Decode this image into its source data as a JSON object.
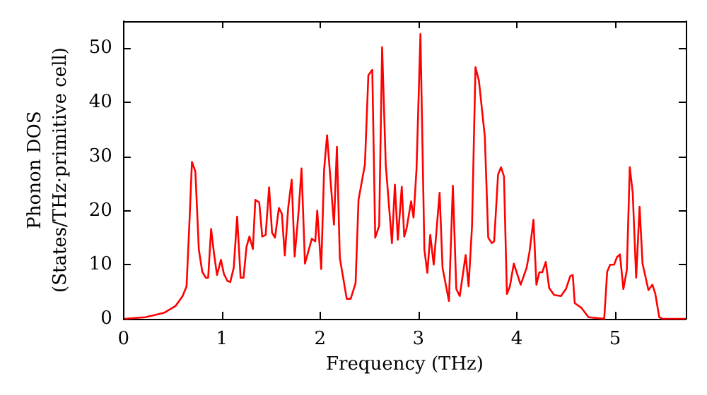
{
  "chart_data": {
    "type": "line",
    "xlabel": "Frequency (THz)",
    "ylabel": "Phonon DOS\n(States/THz·primitive cell)",
    "xlim": [
      0,
      5.72
    ],
    "xticks": [
      0,
      1,
      2,
      3,
      4,
      5
    ],
    "ylim": [
      0,
      55
    ],
    "yticks": [
      0,
      10,
      20,
      30,
      40,
      50
    ],
    "grid": false,
    "marker": "none",
    "line_style": "solid",
    "series": [
      {
        "color": "#ff0000",
        "x": [
          0.01,
          0.22,
          0.41,
          0.53,
          0.6,
          0.64,
          0.67,
          0.695,
          0.73,
          0.765,
          0.8,
          0.835,
          0.86,
          0.89,
          0.92,
          0.95,
          0.99,
          1.02,
          1.056,
          1.085,
          1.12,
          1.155,
          1.19,
          1.22,
          1.25,
          1.28,
          1.315,
          1.34,
          1.38,
          1.41,
          1.445,
          1.48,
          1.51,
          1.54,
          1.58,
          1.61,
          1.64,
          1.675,
          1.71,
          1.74,
          1.78,
          1.81,
          1.845,
          1.915,
          1.95,
          1.97,
          2.01,
          2.04,
          2.07,
          2.14,
          2.17,
          2.2,
          2.27,
          2.31,
          2.36,
          2.39,
          2.455,
          2.49,
          2.53,
          2.56,
          2.6,
          2.63,
          2.667,
          2.73,
          2.76,
          2.79,
          2.83,
          2.855,
          2.88,
          2.925,
          2.95,
          2.98,
          3.02,
          3.06,
          3.09,
          3.12,
          3.155,
          3.215,
          3.245,
          3.31,
          3.35,
          3.385,
          3.42,
          3.48,
          3.51,
          3.545,
          3.58,
          3.615,
          3.675,
          3.71,
          3.745,
          3.77,
          3.81,
          3.84,
          3.87,
          3.9,
          3.93,
          3.97,
          4.04,
          4.1,
          4.13,
          4.17,
          4.2,
          4.23,
          4.26,
          4.295,
          4.33,
          4.38,
          4.45,
          4.5,
          4.545,
          4.57,
          4.59,
          4.66,
          4.73,
          4.89,
          4.92,
          4.95,
          4.99,
          5.02,
          5.05,
          5.085,
          5.12,
          5.15,
          5.18,
          5.215,
          5.25,
          5.28,
          5.34,
          5.38,
          5.41,
          5.45,
          5.48,
          5.72
        ],
        "values": [
          0,
          0.3,
          1.1,
          2.4,
          4.2,
          6,
          18,
          29,
          27.2,
          12.8,
          8.7,
          7.6,
          7.6,
          16.6,
          12,
          8.1,
          10.9,
          8.3,
          7,
          6.8,
          9.4,
          18.9,
          7.6,
          7.6,
          13.3,
          15.2,
          12.9,
          22,
          21.5,
          15.2,
          15.5,
          24.3,
          15.9,
          15,
          20.5,
          19.4,
          11.7,
          20.6,
          25.7,
          11.5,
          19.8,
          27.8,
          10.2,
          14.8,
          14.3,
          20,
          9.2,
          27.6,
          33.9,
          17.4,
          31.8,
          11.2,
          3.7,
          3.7,
          6.6,
          22,
          28.5,
          45,
          46,
          15,
          17.2,
          50.2,
          28.5,
          14,
          24.8,
          14.6,
          24.4,
          15.2,
          16.8,
          21.7,
          18.7,
          27.6,
          52.6,
          12.8,
          8.5,
          15.5,
          10,
          23.3,
          9.4,
          3.3,
          24.6,
          5.5,
          4.2,
          11.8,
          6,
          17.2,
          46.5,
          44,
          33.7,
          15,
          14,
          14.3,
          26.7,
          28,
          26.3,
          4.6,
          6,
          10.2,
          6.3,
          9.4,
          12.4,
          18.3,
          6.3,
          8.6,
          8.6,
          10.5,
          5.7,
          4.4,
          4.2,
          5.5,
          7.9,
          8.1,
          2.9,
          2,
          0.3,
          0,
          8.7,
          10,
          10,
          11.4,
          11.9,
          5.5,
          9,
          28,
          23.3,
          7.6,
          20.7,
          10.2,
          5.3,
          6.3,
          4.6,
          0.3,
          0,
          0
        ]
      }
    ]
  }
}
